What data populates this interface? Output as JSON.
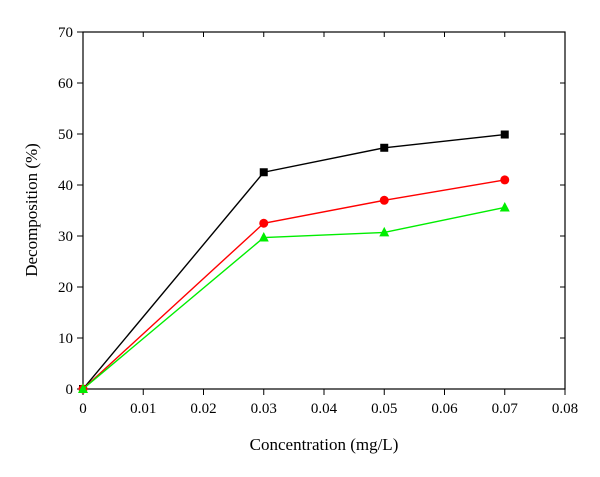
{
  "chart_data": {
    "type": "line",
    "title": "",
    "xlabel": "Concentration (mg/L)",
    "ylabel": "Decomposition (%)",
    "xlim": [
      0,
      0.08
    ],
    "ylim": [
      0,
      70
    ],
    "xticks": [
      0,
      0.01,
      0.02,
      0.03,
      0.04,
      0.05,
      0.06,
      0.07,
      0.08
    ],
    "xtick_labels": [
      "0",
      "0.01",
      "0.02",
      "0.03",
      "0.04",
      "0.05",
      "0.06",
      "0.07",
      "0.08"
    ],
    "yticks": [
      0,
      10,
      20,
      30,
      40,
      50,
      60,
      70
    ],
    "ytick_labels": [
      "0",
      "10",
      "20",
      "30",
      "40",
      "50",
      "60",
      "70"
    ],
    "grid": false,
    "legend": "none",
    "x": [
      0,
      0.03,
      0.05,
      0.07
    ],
    "series": [
      {
        "color": "#000000",
        "marker": "square",
        "values": [
          0,
          42.5,
          47.3,
          49.9
        ]
      },
      {
        "color": "#ff0000",
        "marker": "circle",
        "values": [
          0,
          32.5,
          37.0,
          41.0
        ]
      },
      {
        "color": "#00ee00",
        "marker": "triangle",
        "values": [
          0,
          29.7,
          30.7,
          35.6
        ]
      }
    ]
  }
}
